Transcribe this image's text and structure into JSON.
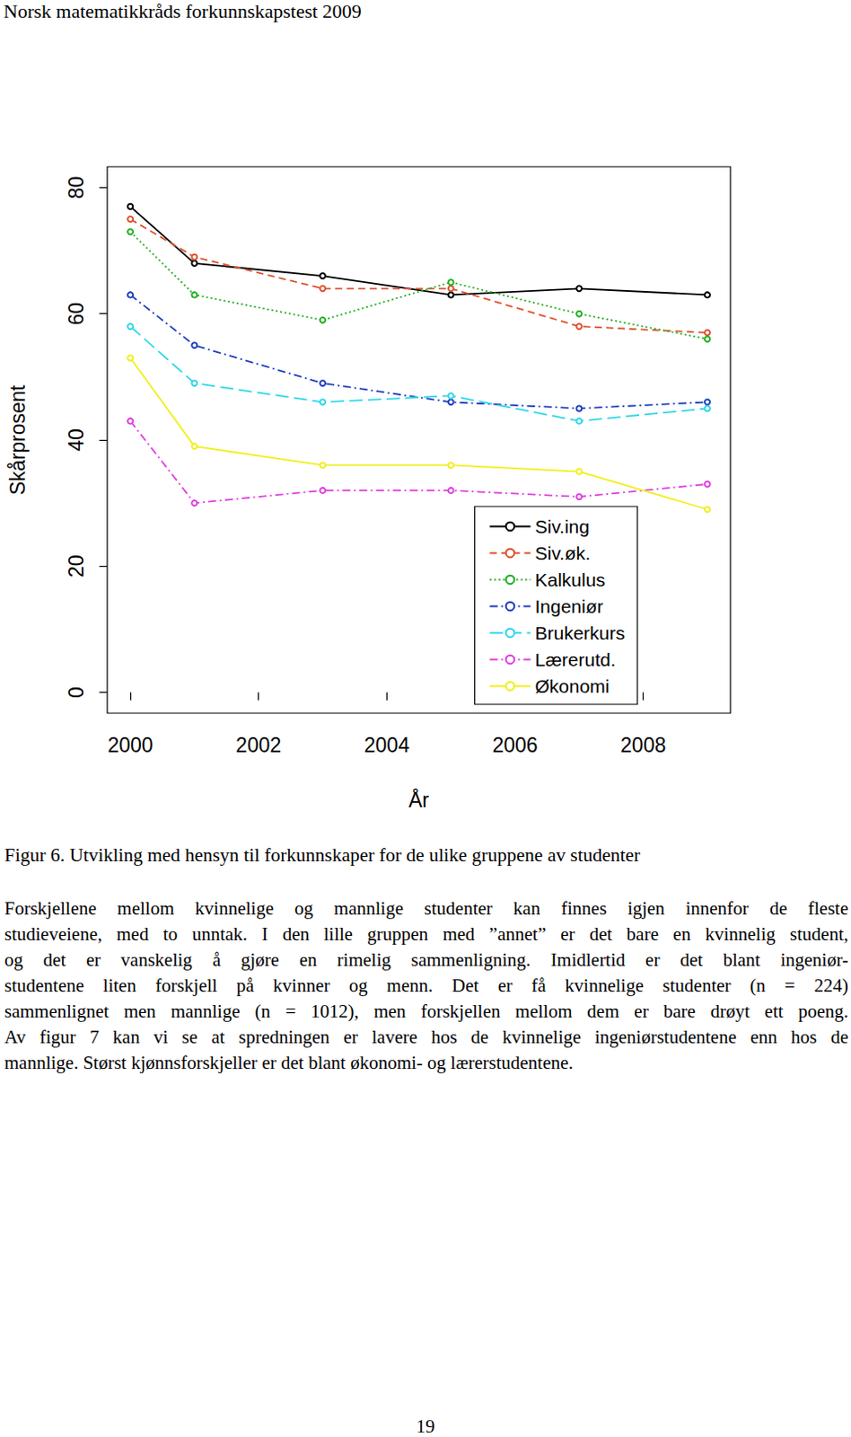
{
  "header": "Norsk matematikkråds forkunnskapstest 2009",
  "chart_data": {
    "type": "line",
    "xlabel": "År",
    "ylabel": "Skårprosent",
    "x": [
      2000,
      2001,
      2003,
      2005,
      2007,
      2009
    ],
    "xlim": [
      1999.64,
      2009.36
    ],
    "xticks": [
      2000,
      2002,
      2004,
      2006,
      2008
    ],
    "ylim": [
      -3.3,
      83.3
    ],
    "yticks": [
      0,
      20,
      40,
      60,
      80
    ],
    "legend": "bottom-right",
    "grid": false,
    "marker": "circle",
    "series": [
      {
        "name": "Siv.ing",
        "color": "#000000",
        "line_style": "solid",
        "values": [
          77,
          68,
          66,
          63,
          64,
          63
        ]
      },
      {
        "name": "Siv.øk.",
        "color": "#df5230",
        "line_style": "dashed",
        "values": [
          75,
          69,
          64,
          64,
          58,
          57
        ]
      },
      {
        "name": "Kalkulus",
        "color": "#22b022",
        "line_style": "dotted",
        "values": [
          73,
          63,
          59,
          65,
          60,
          56
        ]
      },
      {
        "name": "Ingeniør",
        "color": "#2040c0",
        "line_style": "dashdot",
        "values": [
          63,
          55,
          49,
          46,
          45,
          46
        ]
      },
      {
        "name": "Brukerkurs",
        "color": "#30d8e8",
        "line_style": "longdash",
        "values": [
          58,
          49,
          46,
          47,
          43,
          45
        ]
      },
      {
        "name": "Lærerutd.",
        "color": "#e040e0",
        "line_style": "dashdot",
        "values": [
          43,
          30,
          32,
          32,
          31,
          33
        ]
      },
      {
        "name": "Økonomi",
        "color": "#f0f020",
        "line_style": "solid",
        "values": [
          53,
          39,
          36,
          36,
          35,
          29
        ]
      }
    ]
  },
  "caption": "Figur 6. Utvikling med hensyn til forkunnskaper for de ulike gruppene av studenter",
  "paragraph": [
    "Forskjellene mellom kvinnelige og mannlige studenter kan finnes igjen innenfor de fleste",
    "studieveiene, med to unntak. I den lille gruppen med ”annet” er det bare en kvinnelig student,",
    "og det er vanskelig å gjøre en rimelig sammenligning.  Imidlertid er det blant ingeniør-",
    "studentene liten forskjell på kvinner og menn. Det er få kvinnelige studenter (n = 224)",
    "sammenlignet men mannlige (n = 1012), men forskjellen mellom dem er bare drøyt ett poeng.",
    "Av figur 7 kan vi se at spredningen er lavere hos de kvinnelige ingeniørstudentene enn hos de",
    "mannlige. Størst kjønnsforskjeller er det blant økonomi- og lærerstudentene."
  ],
  "page_number": "19"
}
